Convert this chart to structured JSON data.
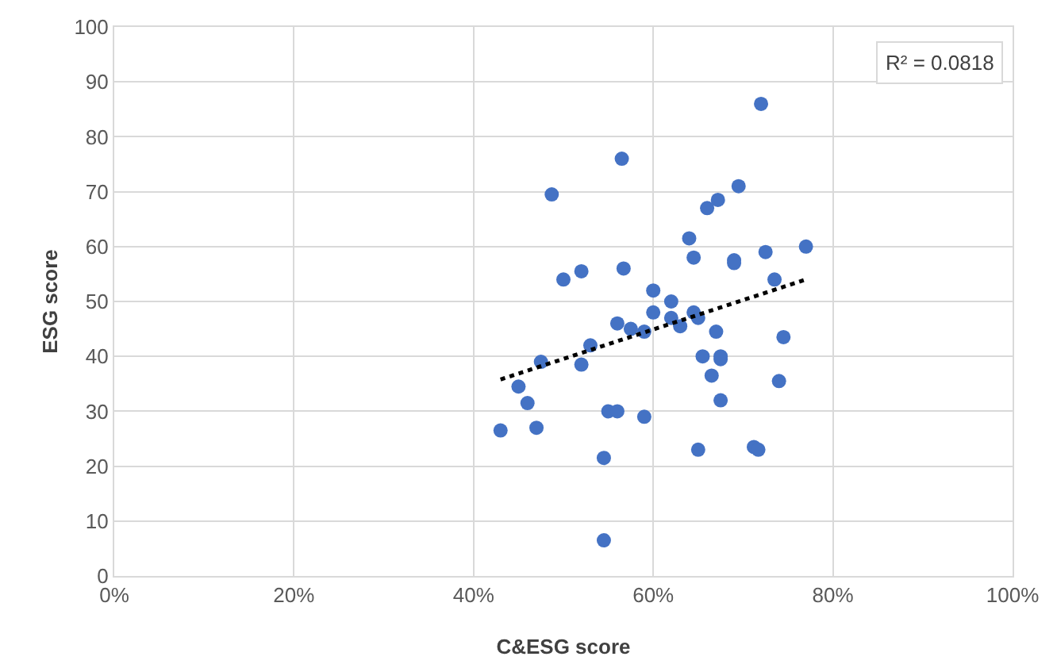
{
  "chart_data": {
    "type": "scatter",
    "xlabel": "C&ESG score",
    "ylabel": "ESG score",
    "annotations": [
      "R² = 0.0818"
    ],
    "xlim": [
      0,
      1
    ],
    "xticks": [
      {
        "value": 0,
        "label": "0%"
      },
      {
        "value": 0.2,
        "label": "20%"
      },
      {
        "value": 0.4,
        "label": "40%"
      },
      {
        "value": 0.6,
        "label": "60%"
      },
      {
        "value": 0.8,
        "label": "80%"
      },
      {
        "value": 1,
        "label": "100%"
      }
    ],
    "ylim": [
      0,
      100
    ],
    "yticks": [
      0,
      10,
      20,
      30,
      40,
      50,
      60,
      70,
      80,
      90,
      100
    ],
    "grid": true,
    "legend": false,
    "marker": "circle",
    "series": [
      {
        "color": "#4472c4",
        "x": [
          0.43,
          0.45,
          0.46,
          0.47,
          0.475,
          0.487,
          0.5,
          0.52,
          0.52,
          0.53,
          0.545,
          0.545,
          0.55,
          0.56,
          0.56,
          0.565,
          0.567,
          0.575,
          0.59,
          0.59,
          0.6,
          0.6,
          0.62,
          0.62,
          0.63,
          0.64,
          0.645,
          0.645,
          0.65,
          0.65,
          0.655,
          0.66,
          0.665,
          0.67,
          0.672,
          0.675,
          0.675,
          0.675,
          0.69,
          0.69,
          0.695,
          0.712,
          0.717,
          0.72,
          0.725,
          0.735,
          0.74,
          0.745,
          0.77
        ],
        "values": [
          26.5,
          34.5,
          31.5,
          27,
          39,
          69.5,
          54,
          55.5,
          38.5,
          42,
          21.5,
          6.5,
          30,
          30,
          46,
          76,
          56,
          45,
          44.5,
          29,
          52,
          48,
          50,
          47,
          45.5,
          61.5,
          58,
          48,
          23,
          47,
          40,
          67,
          36.5,
          44.5,
          68.5,
          39.5,
          40,
          32,
          57.5,
          57,
          71,
          23.5,
          23,
          86,
          59,
          54,
          35.5,
          43.5,
          60
        ]
      },
      {
        "type": "line",
        "color": "#000000",
        "line_style": "dotted",
        "marker": "none",
        "x": [
          0.43,
          0.77
        ],
        "values": [
          35.8,
          54
        ]
      }
    ]
  }
}
